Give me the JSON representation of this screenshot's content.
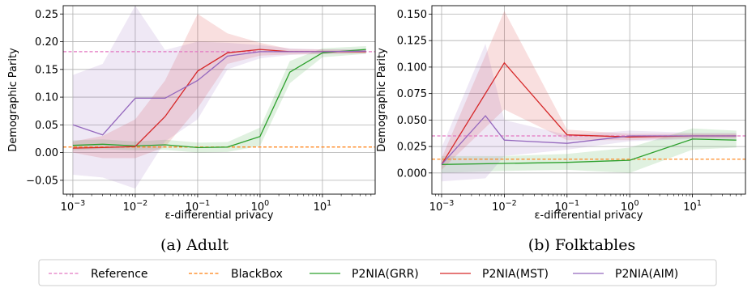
{
  "chart_data": [
    {
      "type": "line",
      "caption": "(a) Adult",
      "xlabel": "ε-differential privacy",
      "ylabel": "Demographic Parity",
      "xscale": "log",
      "xlim": [
        0.0007,
        70
      ],
      "ylim": [
        -0.075,
        0.265
      ],
      "xticks": [
        {
          "value": 0.001,
          "base": "10",
          "exp": "−3"
        },
        {
          "value": 0.01,
          "base": "10",
          "exp": "−2"
        },
        {
          "value": 0.1,
          "base": "10",
          "exp": "−1"
        },
        {
          "value": 1,
          "base": "10",
          "exp": "0"
        },
        {
          "value": 10,
          "base": "10",
          "exp": "1"
        }
      ],
      "yticks": [
        {
          "value": -0.05,
          "label": "−0.05"
        },
        {
          "value": 0.0,
          "label": "0.00"
        },
        {
          "value": 0.05,
          "label": "0.05"
        },
        {
          "value": 0.1,
          "label": "0.10"
        },
        {
          "value": 0.15,
          "label": "0.15"
        },
        {
          "value": 0.2,
          "label": "0.20"
        },
        {
          "value": 0.25,
          "label": "0.25"
        }
      ],
      "grid": true,
      "hlines": [
        {
          "name": "Reference",
          "value": 0.182,
          "color": "#e377c2"
        },
        {
          "name": "BlackBox",
          "value": 0.01,
          "color": "#ff7f0e"
        }
      ],
      "series": [
        {
          "name": "P2NIA(GRR)",
          "color": "#2ca02c",
          "x": [
            0.001,
            0.003,
            0.01,
            0.03,
            0.1,
            0.3,
            1,
            3,
            10,
            50
          ],
          "y": [
            0.013,
            0.015,
            0.012,
            0.014,
            0.009,
            0.01,
            0.029,
            0.145,
            0.18,
            0.186
          ],
          "lower": [
            0.004,
            0.006,
            0.004,
            0.005,
            0.0,
            0.001,
            0.012,
            0.125,
            0.172,
            0.178
          ],
          "upper": [
            0.022,
            0.024,
            0.02,
            0.023,
            0.018,
            0.019,
            0.045,
            0.165,
            0.188,
            0.192
          ]
        },
        {
          "name": "P2NIA(MST)",
          "color": "#d62728",
          "x": [
            0.001,
            0.003,
            0.01,
            0.03,
            0.1,
            0.3,
            1,
            3,
            10,
            50
          ],
          "y": [
            0.008,
            0.009,
            0.011,
            0.065,
            0.147,
            0.18,
            0.186,
            0.182,
            0.182,
            0.182
          ],
          "lower": [
            0.0,
            -0.01,
            -0.01,
            0.01,
            0.08,
            0.16,
            0.175,
            0.177,
            0.178,
            0.179
          ],
          "upper": [
            0.02,
            0.03,
            0.06,
            0.13,
            0.25,
            0.215,
            0.198,
            0.187,
            0.186,
            0.185
          ]
        },
        {
          "name": "P2NIA(AIM)",
          "color": "#9467bd",
          "x": [
            0.001,
            0.003,
            0.01,
            0.03,
            0.1,
            0.3,
            1,
            3,
            10,
            50
          ],
          "y": [
            0.05,
            0.032,
            0.098,
            0.098,
            0.13,
            0.174,
            0.182,
            0.182,
            0.182,
            0.183
          ],
          "lower": [
            -0.04,
            -0.045,
            -0.065,
            0.02,
            0.06,
            0.15,
            0.17,
            0.176,
            0.178,
            0.179
          ],
          "upper": [
            0.14,
            0.16,
            0.265,
            0.185,
            0.2,
            0.198,
            0.194,
            0.188,
            0.186,
            0.187
          ]
        }
      ]
    },
    {
      "type": "line",
      "caption": "(b) Folktables",
      "xlabel": "ε-differential privacy",
      "ylabel": "Demographic Parity",
      "xscale": "log",
      "xlim": [
        0.0007,
        70
      ],
      "ylim": [
        -0.02,
        0.158
      ],
      "xticks": [
        {
          "value": 0.001,
          "base": "10",
          "exp": "−3"
        },
        {
          "value": 0.01,
          "base": "10",
          "exp": "−2"
        },
        {
          "value": 0.1,
          "base": "10",
          "exp": "−1"
        },
        {
          "value": 1,
          "base": "10",
          "exp": "0"
        },
        {
          "value": 10,
          "base": "10",
          "exp": "1"
        }
      ],
      "yticks": [
        {
          "value": 0.0,
          "label": "0.000"
        },
        {
          "value": 0.025,
          "label": "0.025"
        },
        {
          "value": 0.05,
          "label": "0.050"
        },
        {
          "value": 0.075,
          "label": "0.075"
        },
        {
          "value": 0.1,
          "label": "0.100"
        },
        {
          "value": 0.125,
          "label": "0.125"
        },
        {
          "value": 0.15,
          "label": "0.150"
        }
      ],
      "grid": true,
      "hlines": [
        {
          "name": "Reference",
          "value": 0.035,
          "color": "#e377c2"
        },
        {
          "name": "BlackBox",
          "value": 0.013,
          "color": "#ff7f0e"
        }
      ],
      "series": [
        {
          "name": "P2NIA(GRR)",
          "color": "#2ca02c",
          "x": [
            0.001,
            0.01,
            0.1,
            1,
            10,
            50
          ],
          "y": [
            0.008,
            0.009,
            0.01,
            0.012,
            0.032,
            0.031
          ],
          "lower": [
            0.0,
            0.002,
            0.003,
            0.0,
            0.022,
            0.024
          ],
          "upper": [
            0.016,
            0.016,
            0.018,
            0.024,
            0.042,
            0.04
          ]
        },
        {
          "name": "P2NIA(MST)",
          "color": "#d62728",
          "x": [
            0.001,
            0.01,
            0.1,
            1,
            10,
            50
          ],
          "y": [
            0.008,
            0.104,
            0.036,
            0.034,
            0.035,
            0.035
          ],
          "lower": [
            0.003,
            0.06,
            0.031,
            0.031,
            0.033,
            0.033
          ],
          "upper": [
            0.014,
            0.153,
            0.041,
            0.037,
            0.037,
            0.037
          ]
        },
        {
          "name": "P2NIA(AIM)",
          "color": "#9467bd",
          "x": [
            0.001,
            0.005,
            0.01,
            0.1,
            1,
            10,
            50
          ],
          "y": [
            0.008,
            0.054,
            0.031,
            0.028,
            0.035,
            0.035,
            0.035
          ],
          "lower": [
            -0.008,
            -0.005,
            0.016,
            0.022,
            0.03,
            0.032,
            0.032
          ],
          "upper": [
            0.024,
            0.122,
            0.05,
            0.036,
            0.04,
            0.038,
            0.038
          ]
        }
      ]
    }
  ],
  "legend": {
    "placement": "bottom",
    "entries": [
      {
        "label": "Reference",
        "color": "#e377c2",
        "style": "dashed"
      },
      {
        "label": "BlackBox",
        "color": "#ff7f0e",
        "style": "dashed"
      },
      {
        "label": "P2NIA(GRR)",
        "color": "#2ca02c",
        "style": "solid"
      },
      {
        "label": "P2NIA(MST)",
        "color": "#d62728",
        "style": "solid"
      },
      {
        "label": "P2NIA(AIM)",
        "color": "#9467bd",
        "style": "solid"
      }
    ]
  }
}
